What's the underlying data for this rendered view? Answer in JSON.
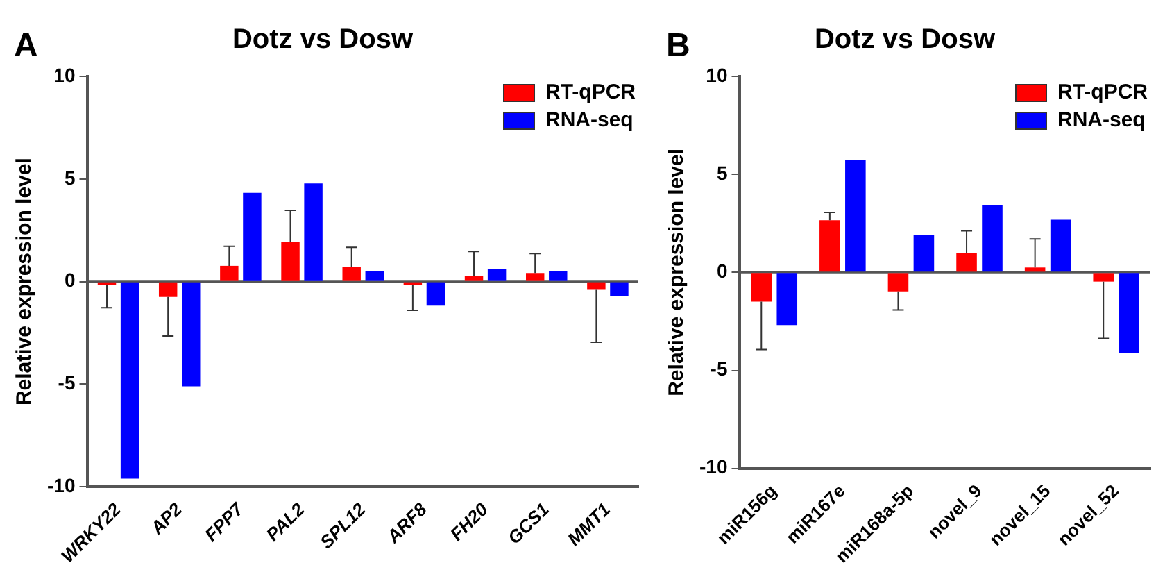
{
  "chart_data": [
    {
      "type": "bar",
      "title": "Dotz vs Dosw",
      "ylabel": "Relative expression level",
      "annotations": [
        "A"
      ],
      "categories": [
        "WRKY22",
        "AP2",
        "FPP7",
        "PAL2",
        "SPL12",
        "ARF8",
        "FH20",
        "GCS1",
        "MMT1"
      ],
      "series": [
        {
          "name": "RT-qPCR",
          "color": "#ff0000",
          "values": [
            -0.17,
            -0.75,
            0.77,
            1.92,
            0.72,
            -0.15,
            0.27,
            0.42,
            -0.4
          ],
          "errors": [
            1.1,
            1.9,
            0.95,
            1.55,
            0.95,
            1.25,
            1.2,
            0.95,
            2.55
          ]
        },
        {
          "name": "RNA-seq",
          "color": "#0000ff",
          "values": [
            -9.6,
            -5.1,
            4.33,
            4.78,
            0.5,
            -1.17,
            0.6,
            0.52,
            -0.7
          ]
        }
      ],
      "ylim": [
        -10,
        10
      ],
      "yticks": [
        -10,
        -5,
        0,
        5,
        10
      ],
      "grid": false,
      "legend": "top right",
      "ref_lines": [
        {
          "axis": "y",
          "value": 0
        }
      ]
    },
    {
      "type": "bar",
      "title": "Dotz vs Dosw",
      "ylabel": "Relative expression level",
      "annotations": [
        "B"
      ],
      "categories": [
        "miR156g",
        "miR167e",
        "miR168a-5p",
        "novel_9",
        "novel_15",
        "novel_52"
      ],
      "series": [
        {
          "name": "RT-qPCR",
          "color": "#ff0000",
          "values": [
            -1.49,
            2.66,
            -0.97,
            0.97,
            0.25,
            -0.47
          ],
          "errors": [
            2.45,
            0.4,
            0.95,
            1.15,
            1.45,
            2.9
          ]
        },
        {
          "name": "RNA-seq",
          "color": "#0000ff",
          "values": [
            -2.69,
            5.75,
            1.89,
            3.41,
            2.69,
            -4.1
          ]
        }
      ],
      "ylim": [
        -10,
        10
      ],
      "yticks": [
        -10,
        -5,
        0,
        5,
        10
      ],
      "grid": false,
      "legend": "top right",
      "ref_lines": [
        {
          "axis": "y",
          "value": 0
        }
      ]
    }
  ]
}
